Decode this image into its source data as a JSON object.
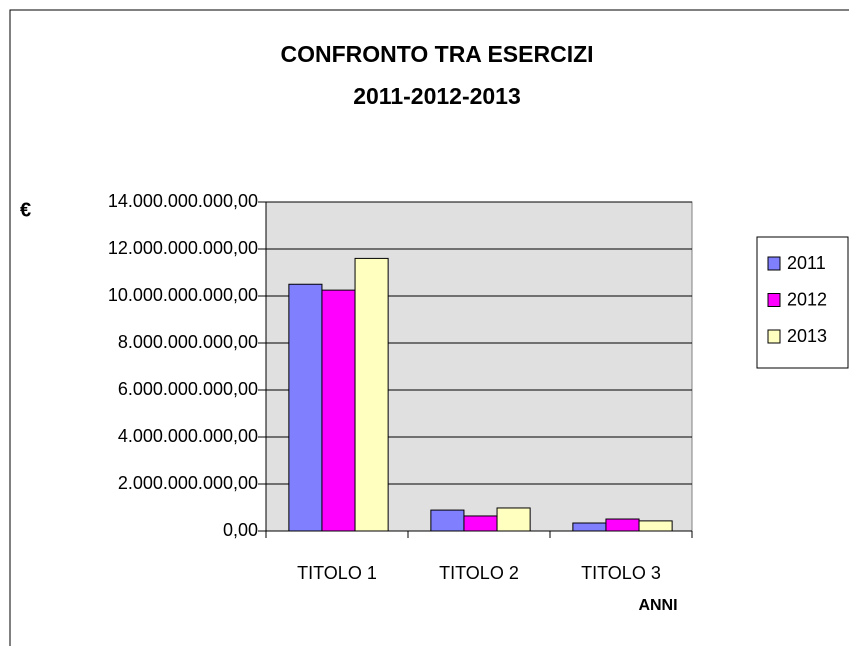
{
  "chart_data": {
    "type": "bar",
    "title": "CONFRONTO TRA ESERCIZI",
    "subtitle": "2011-2012-2013",
    "y_label": "€",
    "x_label": "ANNI",
    "categories": [
      "TITOLO 1",
      "TITOLO 2",
      "TITOLO 3"
    ],
    "series": [
      {
        "name": "2011",
        "color": "#8080ff",
        "values": [
          10500000000,
          890000000,
          340000000
        ]
      },
      {
        "name": "2012",
        "color": "#ff00ff",
        "values": [
          10250000000,
          640000000,
          510000000
        ]
      },
      {
        "name": "2013",
        "color": "#ffffc0",
        "values": [
          11600000000,
          980000000,
          430000000
        ]
      }
    ],
    "ylim": [
      0,
      14000000000
    ],
    "yticks": [
      {
        "value": 0,
        "label": "0,00"
      },
      {
        "value": 2000000000,
        "label": "2.000.000.000,00"
      },
      {
        "value": 4000000000,
        "label": "4.000.000.000,00"
      },
      {
        "value": 6000000000,
        "label": "6.000.000.000,00"
      },
      {
        "value": 8000000000,
        "label": "8.000.000.000,00"
      },
      {
        "value": 10000000000,
        "label": "10.000.000.000,00"
      },
      {
        "value": 12000000000,
        "label": "12.000.000.000,00"
      },
      {
        "value": 14000000000,
        "label": "14.000.000.000,00"
      }
    ],
    "grid": true,
    "legend": "right"
  }
}
